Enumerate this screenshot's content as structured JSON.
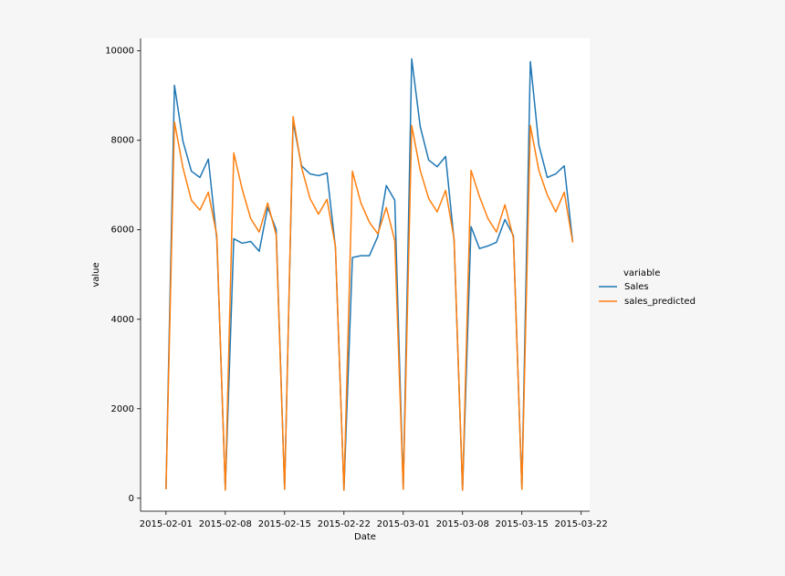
{
  "chart_data": {
    "type": "line",
    "xlabel": "Date",
    "ylabel": "value",
    "legend_title": "variable",
    "legend": "outside right",
    "x": [
      "2015-02-01",
      "2015-02-02",
      "2015-02-03",
      "2015-02-04",
      "2015-02-05",
      "2015-02-06",
      "2015-02-07",
      "2015-02-08",
      "2015-02-09",
      "2015-02-10",
      "2015-02-11",
      "2015-02-12",
      "2015-02-13",
      "2015-02-14",
      "2015-02-15",
      "2015-02-16",
      "2015-02-17",
      "2015-02-18",
      "2015-02-19",
      "2015-02-20",
      "2015-02-21",
      "2015-02-22",
      "2015-02-23",
      "2015-02-24",
      "2015-02-25",
      "2015-02-26",
      "2015-02-27",
      "2015-02-28",
      "2015-03-01",
      "2015-03-02",
      "2015-03-03",
      "2015-03-04",
      "2015-03-05",
      "2015-03-06",
      "2015-03-07",
      "2015-03-08",
      "2015-03-09",
      "2015-03-10",
      "2015-03-11",
      "2015-03-12",
      "2015-03-13",
      "2015-03-14",
      "2015-03-15",
      "2015-03-16",
      "2015-03-17",
      "2015-03-18",
      "2015-03-19",
      "2015-03-20",
      "2015-03-21"
    ],
    "series": [
      {
        "name": "Sales",
        "color": "#1f77b4",
        "values": [
          200,
          9230,
          7980,
          7310,
          7170,
          7580,
          5780,
          200,
          5800,
          5700,
          5740,
          5520,
          6500,
          6010,
          200,
          8410,
          7430,
          7250,
          7210,
          7270,
          5600,
          180,
          5380,
          5420,
          5420,
          5850,
          6990,
          6660,
          200,
          9820,
          8310,
          7560,
          7410,
          7640,
          5760,
          180,
          6070,
          5580,
          5640,
          5720,
          6230,
          5870,
          200,
          9760,
          7900,
          7170,
          7250,
          7430,
          5720
        ]
      },
      {
        "name": "sales_predicted",
        "color": "#ff7f0e",
        "values": [
          200,
          8410,
          7390,
          6660,
          6440,
          6840,
          5870,
          180,
          7720,
          6900,
          6250,
          5950,
          6600,
          5890,
          200,
          8530,
          7390,
          6700,
          6350,
          6680,
          5620,
          180,
          7310,
          6600,
          6170,
          5910,
          6500,
          5760,
          200,
          8330,
          7330,
          6700,
          6400,
          6880,
          5800,
          180,
          7330,
          6740,
          6250,
          5950,
          6560,
          5820,
          200,
          8330,
          7330,
          6780,
          6400,
          6840,
          5720
        ]
      }
    ],
    "xlim": [
      "2015-01-29",
      "2015-03-23"
    ],
    "xticks": [
      "2015-02-01",
      "2015-02-08",
      "2015-02-15",
      "2015-02-22",
      "2015-03-01",
      "2015-03-08",
      "2015-03-15",
      "2015-03-22"
    ],
    "ylim": [
      -290,
      10280
    ],
    "yticks": [
      0,
      2000,
      4000,
      6000,
      8000,
      10000
    ],
    "grid": false
  }
}
